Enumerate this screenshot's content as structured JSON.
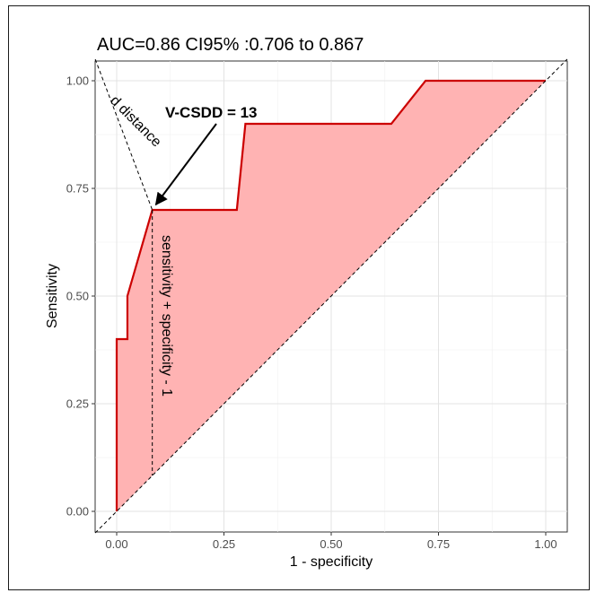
{
  "chart_data": {
    "type": "line",
    "title": "AUC=0.86   CI95% :0.706 to 0.867",
    "xlabel": "1 - specificity",
    "ylabel": "Sensitivity",
    "xlim": [
      0,
      1
    ],
    "ylim": [
      0,
      1
    ],
    "x_ticks": [
      "0.00",
      "0.25",
      "0.50",
      "0.75",
      "1.00"
    ],
    "y_ticks": [
      "0.00",
      "0.25",
      "0.50",
      "0.75",
      "1.00"
    ],
    "grid": true,
    "series": [
      {
        "x": [
          0,
          0,
          0.025,
          0.025,
          0.083,
          0.28,
          0.3,
          0.64,
          0.72,
          1.0
        ],
        "y": [
          0,
          0.4,
          0.4,
          0.5,
          0.7,
          0.7,
          0.9,
          0.9,
          1.0,
          1.0
        ],
        "color": "#cc0000",
        "fill": "#ffb3b3"
      }
    ],
    "optimal_point": {
      "x": 0.083,
      "y": 0.7
    },
    "annotations": {
      "cutoff_label": "V-CSDD = 13",
      "d_distance_label": "d distance",
      "youden_label": "sensitivity + specificity - 1"
    }
  }
}
